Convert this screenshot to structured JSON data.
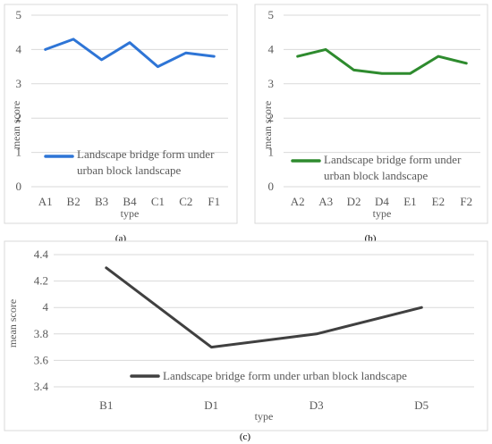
{
  "chart_data": [
    {
      "type": "line",
      "panel_label": "(a)",
      "categories": [
        "A1",
        "B2",
        "B3",
        "B4",
        "C1",
        "C2",
        "F1"
      ],
      "series": [
        {
          "name": "Landscape bridge form under urban block landscape",
          "values": [
            4.0,
            4.3,
            3.7,
            4.2,
            3.5,
            3.9,
            3.8
          ],
          "color": "#2e75d6"
        }
      ],
      "xlabel": "type",
      "ylabel": "mean score",
      "ylim": [
        0,
        5
      ],
      "yticks": [
        "0",
        "1",
        "2",
        "3",
        "4",
        "5"
      ],
      "legend_lines": [
        "Landscape bridge form under",
        "urban block landscape"
      ],
      "grid": true
    },
    {
      "type": "line",
      "panel_label": "(b)",
      "categories": [
        "A2",
        "A3",
        "D2",
        "D4",
        "E1",
        "E2",
        "F2"
      ],
      "series": [
        {
          "name": "Landscape bridge form under urban block landscape",
          "values": [
            3.8,
            4.0,
            3.4,
            3.3,
            3.3,
            3.8,
            3.6
          ],
          "color": "#2e8b2e"
        }
      ],
      "xlabel": "type",
      "ylabel": "mean score",
      "ylim": [
        0,
        5
      ],
      "yticks": [
        "0",
        "1",
        "2",
        "3",
        "4",
        "5"
      ],
      "legend_lines": [
        "Landscape bridge form under",
        "urban block landscape"
      ],
      "grid": true
    },
    {
      "type": "line",
      "panel_label": "(c)",
      "categories": [
        "B1",
        "D1",
        "D3",
        "D5"
      ],
      "series": [
        {
          "name": "Landscape bridge form under urban block landscape",
          "values": [
            4.3,
            3.7,
            3.8,
            4.0
          ],
          "color": "#404040"
        }
      ],
      "xlabel": "type",
      "ylabel": "mean score",
      "ylim": [
        3.4,
        4.4
      ],
      "yticks": [
        "3.4",
        "3.6",
        "3.8",
        "4",
        "4.2",
        "4.4"
      ],
      "legend_lines": [
        "Landscape bridge form under urban block landscape"
      ],
      "grid": true
    }
  ]
}
